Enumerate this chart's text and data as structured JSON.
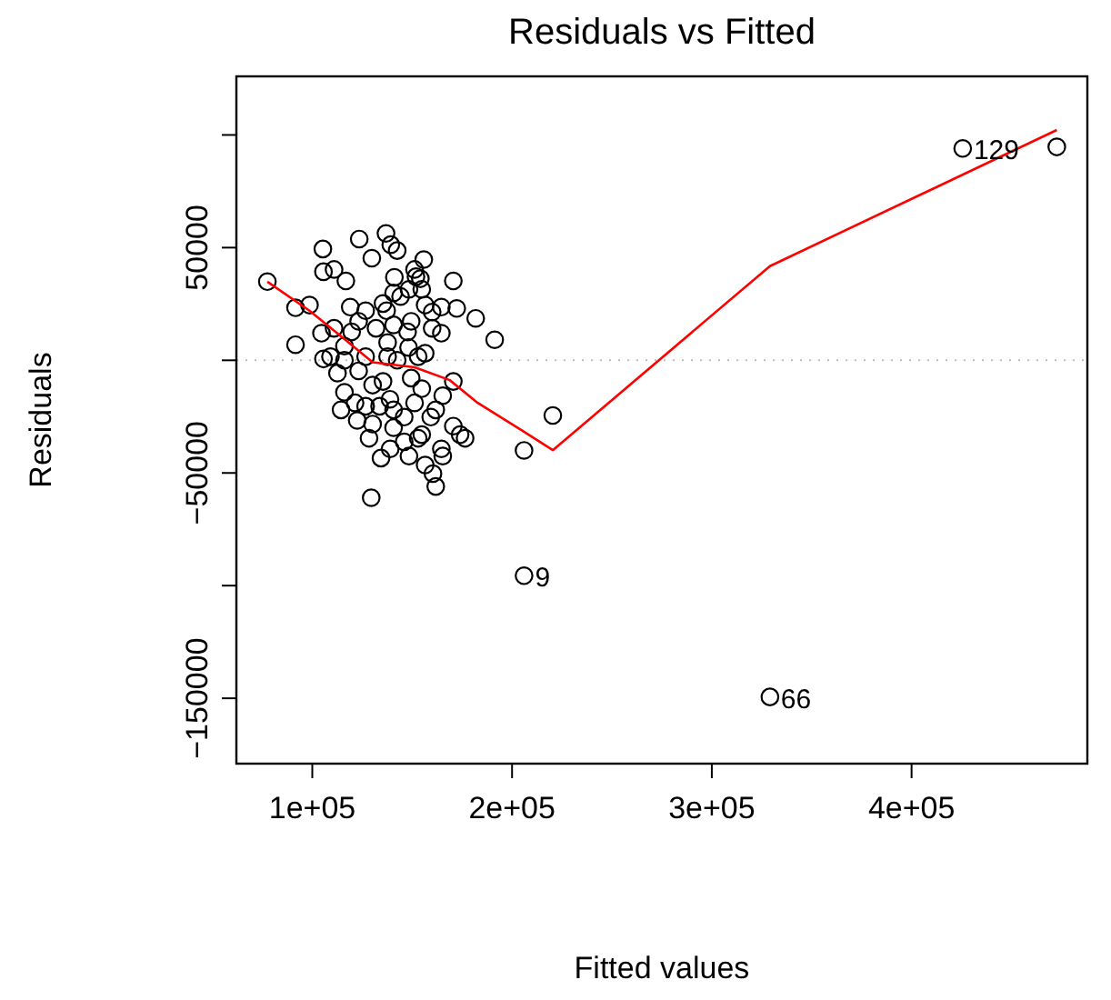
{
  "chart_data": {
    "type": "scatter",
    "title": "Residuals vs Fitted",
    "xlabel": "Fitted values",
    "ylabel": "Residuals",
    "xlim": [
      62000,
      488000
    ],
    "ylim": [
      -179000,
      126000
    ],
    "xticks": [
      {
        "value": 100000,
        "label": "1e+05"
      },
      {
        "value": 200000,
        "label": "2e+05"
      },
      {
        "value": 300000,
        "label": "3e+05"
      },
      {
        "value": 400000,
        "label": "4e+05"
      }
    ],
    "yticks": [
      {
        "value": 100000,
        "label": null
      },
      50000,
      {
        "value": 0,
        "label": null
      },
      -50000,
      {
        "value": -100000,
        "label": null
      },
      -150000
    ],
    "marker": "circle",
    "ref_lines": [
      {
        "axis": "y",
        "value": 0,
        "color": "#bebebe",
        "line_style": "dotted"
      }
    ],
    "annotations": [
      {
        "text": "129",
        "x": 425600,
        "y": 94000
      },
      {
        "text": "9",
        "x": 206000,
        "y": -95600
      },
      {
        "text": "66",
        "x": 329100,
        "y": -149400
      }
    ],
    "series": [
      {
        "color": "#000000",
        "x": [
          425600,
          472700,
          206000,
          329100,
          220400,
          206000,
          129500,
          77500,
          105300,
          123500,
          136900,
          139300,
          142500,
          129800,
          155800,
          105600,
          110900,
          116800,
          141100,
          151200,
          154100,
          170600,
          91600,
          98600,
          104600,
          91600,
          105600,
          119000,
          126700,
          135400,
          144200,
          148400,
          156500,
          164600,
          172300,
          181800,
          191300,
          160000,
          164600,
          131900,
          140700,
          149500,
          123200,
          116100,
          137700,
          148200,
          156500,
          126700,
          112600,
          123200,
          116100,
          121400,
          122500,
          130200,
          135400,
          138900,
          133700,
          149500,
          154800,
          151200,
          161800,
          165300,
          170600,
          140700,
          146000,
          139000,
          148400,
          134400,
          154800,
          164600,
          165300,
          156500,
          160400,
          161800,
          170600,
          174000,
          176500,
          153000,
          140700,
          128400,
          116100,
          114400,
          142500,
          153000,
          130200,
          140700,
          151900,
          109100,
          126700,
          146000,
          159300,
          137200,
          137700,
          110900,
          119700,
          147700,
          160000,
          154800
        ],
        "values": [
          94000,
          94700,
          -95600,
          -149400,
          -24500,
          -40000,
          -61000,
          34900,
          49400,
          53800,
          56300,
          51300,
          48700,
          45300,
          44700,
          39300,
          40300,
          35200,
          36800,
          40300,
          36200,
          35200,
          23300,
          24500,
          12000,
          6900,
          600,
          23600,
          22000,
          25200,
          28300,
          31500,
          24500,
          23600,
          23000,
          18600,
          9100,
          14200,
          12000,
          14200,
          15700,
          17300,
          17300,
          6300,
          7900,
          5700,
          3100,
          1600,
          -5700,
          -4700,
          -14200,
          -18900,
          -26700,
          -28300,
          -9400,
          -17300,
          -20400,
          -7900,
          -12600,
          -18900,
          -22000,
          -15700,
          -9400,
          -29900,
          -36200,
          -39300,
          -42500,
          -43400,
          -33000,
          -39300,
          -42500,
          -46500,
          -50300,
          -56000,
          -29200,
          -33000,
          -34600,
          -34600,
          -22000,
          -34600,
          0,
          -22000,
          0,
          1600,
          -11000,
          29900,
          37100,
          1600,
          -20400,
          -25200,
          -25200,
          22000,
          1600,
          14200,
          12600,
          12600,
          21400,
          31500
        ]
      },
      {
        "type": "line",
        "color": "#ff0000",
        "marker": "none",
        "line_style": "solid",
        "x": [
          77500,
          98600,
          116100,
          130200,
          151200,
          168800,
          182800,
          205600,
          220400,
          329100,
          472700
        ],
        "values": [
          34900,
          22000,
          9400,
          -900,
          -3100,
          -8800,
          -18900,
          -31500,
          -39900,
          41800,
          102200
        ]
      }
    ]
  }
}
